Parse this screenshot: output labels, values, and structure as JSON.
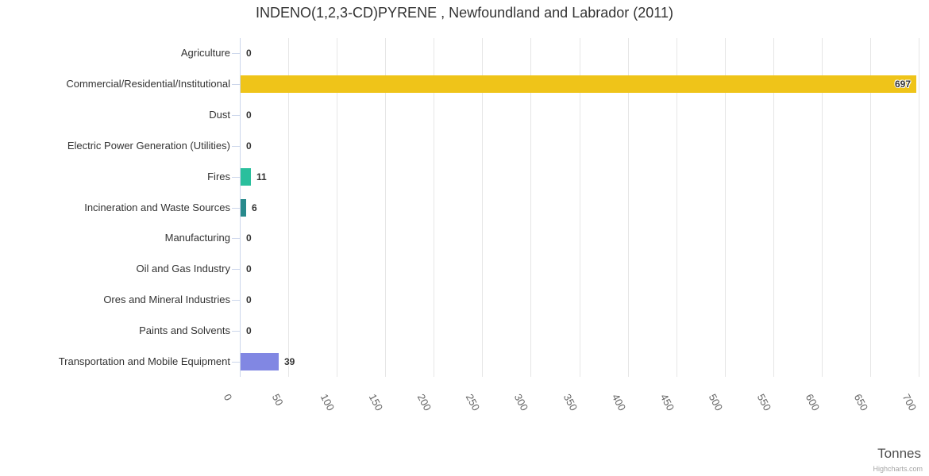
{
  "chart_data": {
    "type": "bar",
    "title": "INDENO(1,2,3-CD)PYRENE , Newfoundland and Labrador (2011)",
    "categories": [
      "Agriculture",
      "Commercial/Residential/Institutional",
      "Dust",
      "Electric Power Generation (Utilities)",
      "Fires",
      "Incineration and Waste Sources",
      "Manufacturing",
      "Oil and Gas Industry",
      "Ores and Mineral Industries",
      "Paints and Solvents",
      "Transportation and Mobile Equipment"
    ],
    "values": [
      0,
      697,
      0,
      0,
      11,
      6,
      0,
      0,
      0,
      0,
      39
    ],
    "bar_colors": [
      null,
      "#EFC419",
      null,
      null,
      "#2ABF9D",
      "#288A8C",
      null,
      null,
      null,
      null,
      "#8187E3"
    ],
    "xlabel": "Tonnes",
    "ylabel": "",
    "xlim": [
      0,
      700
    ],
    "ticks": [
      0,
      50,
      100,
      150,
      200,
      250,
      300,
      350,
      400,
      450,
      500,
      550,
      600,
      650,
      700
    ],
    "grid": true,
    "legend_position": "none",
    "grid_color": "#e6e6e6",
    "axis_line_color": "#ccd6eb",
    "credits": "Highcharts.com"
  }
}
